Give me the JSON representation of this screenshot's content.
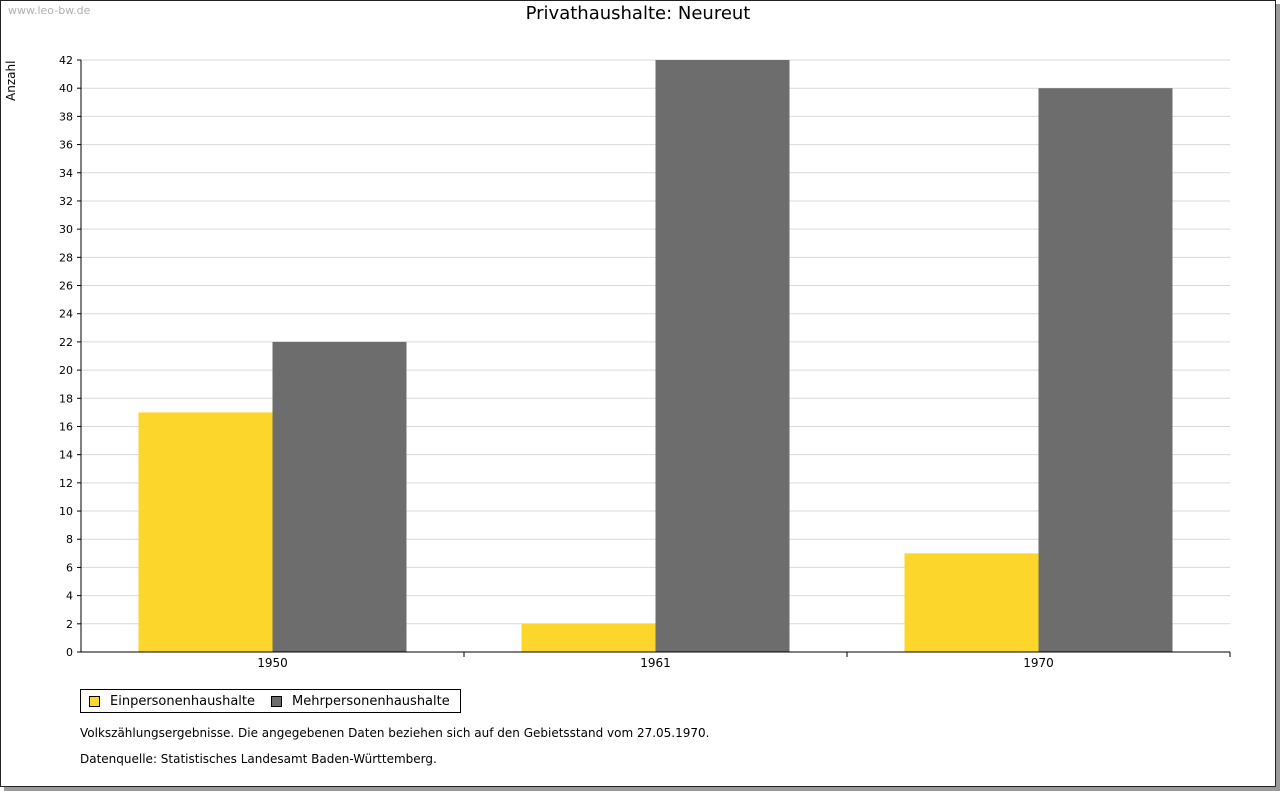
{
  "watermark": "www.leo-bw.de",
  "chart_data": {
    "type": "bar",
    "title": "Privathaushalte: Neureut",
    "ylabel": "Anzahl",
    "xlabel": "",
    "categories": [
      "1950",
      "1961",
      "1970"
    ],
    "series": [
      {
        "name": "Einpersonenhaushalte",
        "values": [
          17,
          2,
          7
        ],
        "color": "#fcd62b"
      },
      {
        "name": "Mehrpersonenhaushalte",
        "values": [
          22,
          42,
          40
        ],
        "color": "#6d6d6d"
      }
    ],
    "ylim": [
      0,
      42
    ],
    "ytick_step": 2,
    "grid": true,
    "legend": "bottom-left"
  },
  "notes": {
    "line1": "Volkszählungsergebnisse. Die angegebenen Daten beziehen sich auf den Gebietsstand vom 27.05.1970.",
    "line2": "Datenquelle: Statistisches Landesamt Baden-Württemberg."
  }
}
